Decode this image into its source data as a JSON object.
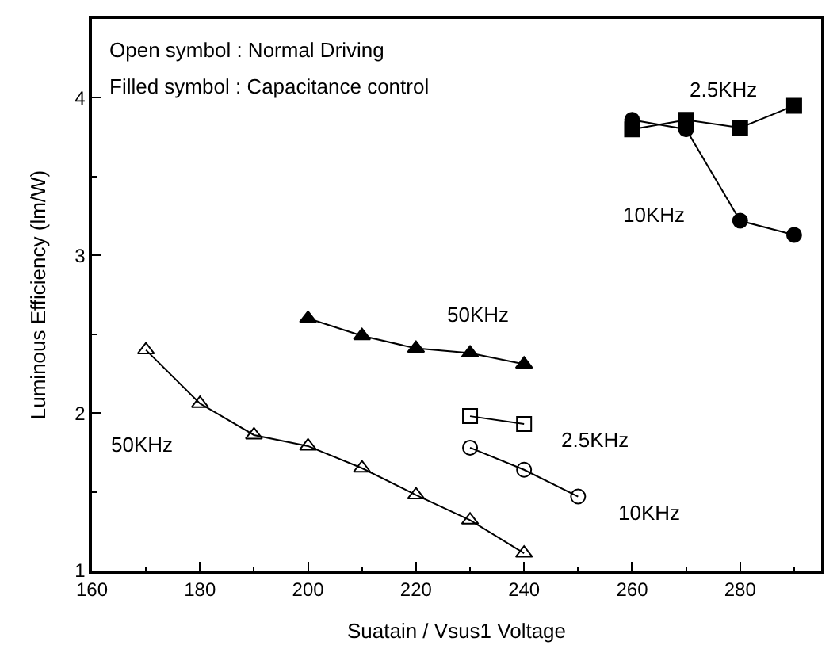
{
  "chart_data": {
    "type": "line",
    "xlabel": "Suatain / Vsus1 Voltage",
    "ylabel": "Luminous Efficiency (lm/W)",
    "xlim": [
      160,
      295
    ],
    "xticks": [
      160,
      180,
      200,
      220,
      240,
      260,
      280
    ],
    "ylim": [
      1,
      4.5
    ],
    "yticks": [
      1,
      2,
      3,
      4
    ],
    "grid": false,
    "legend": false,
    "line_style": "solid",
    "annotations": [
      "Open symbol : Normal Driving",
      "Filled symbol : Capacitance control"
    ],
    "series": [
      {
        "name": "50KHz",
        "color": "#000000",
        "marker": "triangle-open",
        "x": [
          170,
          180,
          190,
          200,
          210,
          220,
          230,
          240
        ],
        "values": [
          2.4,
          2.06,
          1.86,
          1.79,
          1.65,
          1.48,
          1.32,
          1.11
        ]
      },
      {
        "name": "50KHz",
        "color": "#000000",
        "marker": "triangle",
        "x": [
          200,
          210,
          220,
          230,
          240
        ],
        "values": [
          2.6,
          2.49,
          2.41,
          2.38,
          2.31
        ]
      },
      {
        "name": "2.5KHz",
        "color": "#000000",
        "marker": "square-open",
        "x": [
          230,
          240
        ],
        "values": [
          1.98,
          1.93
        ]
      },
      {
        "name": "10KHz",
        "color": "#000000",
        "marker": "circle-open",
        "x": [
          230,
          240,
          250
        ],
        "values": [
          1.78,
          1.64,
          1.47
        ]
      },
      {
        "name": "2.5KHz",
        "color": "#000000",
        "marker": "square",
        "x": [
          260,
          270,
          280,
          290
        ],
        "values": [
          3.8,
          3.86,
          3.81,
          3.95
        ]
      },
      {
        "name": "10KHz",
        "color": "#000000",
        "marker": "circle",
        "x": [
          260,
          270,
          280,
          290
        ],
        "values": [
          3.86,
          3.8,
          3.22,
          3.13
        ]
      }
    ]
  }
}
